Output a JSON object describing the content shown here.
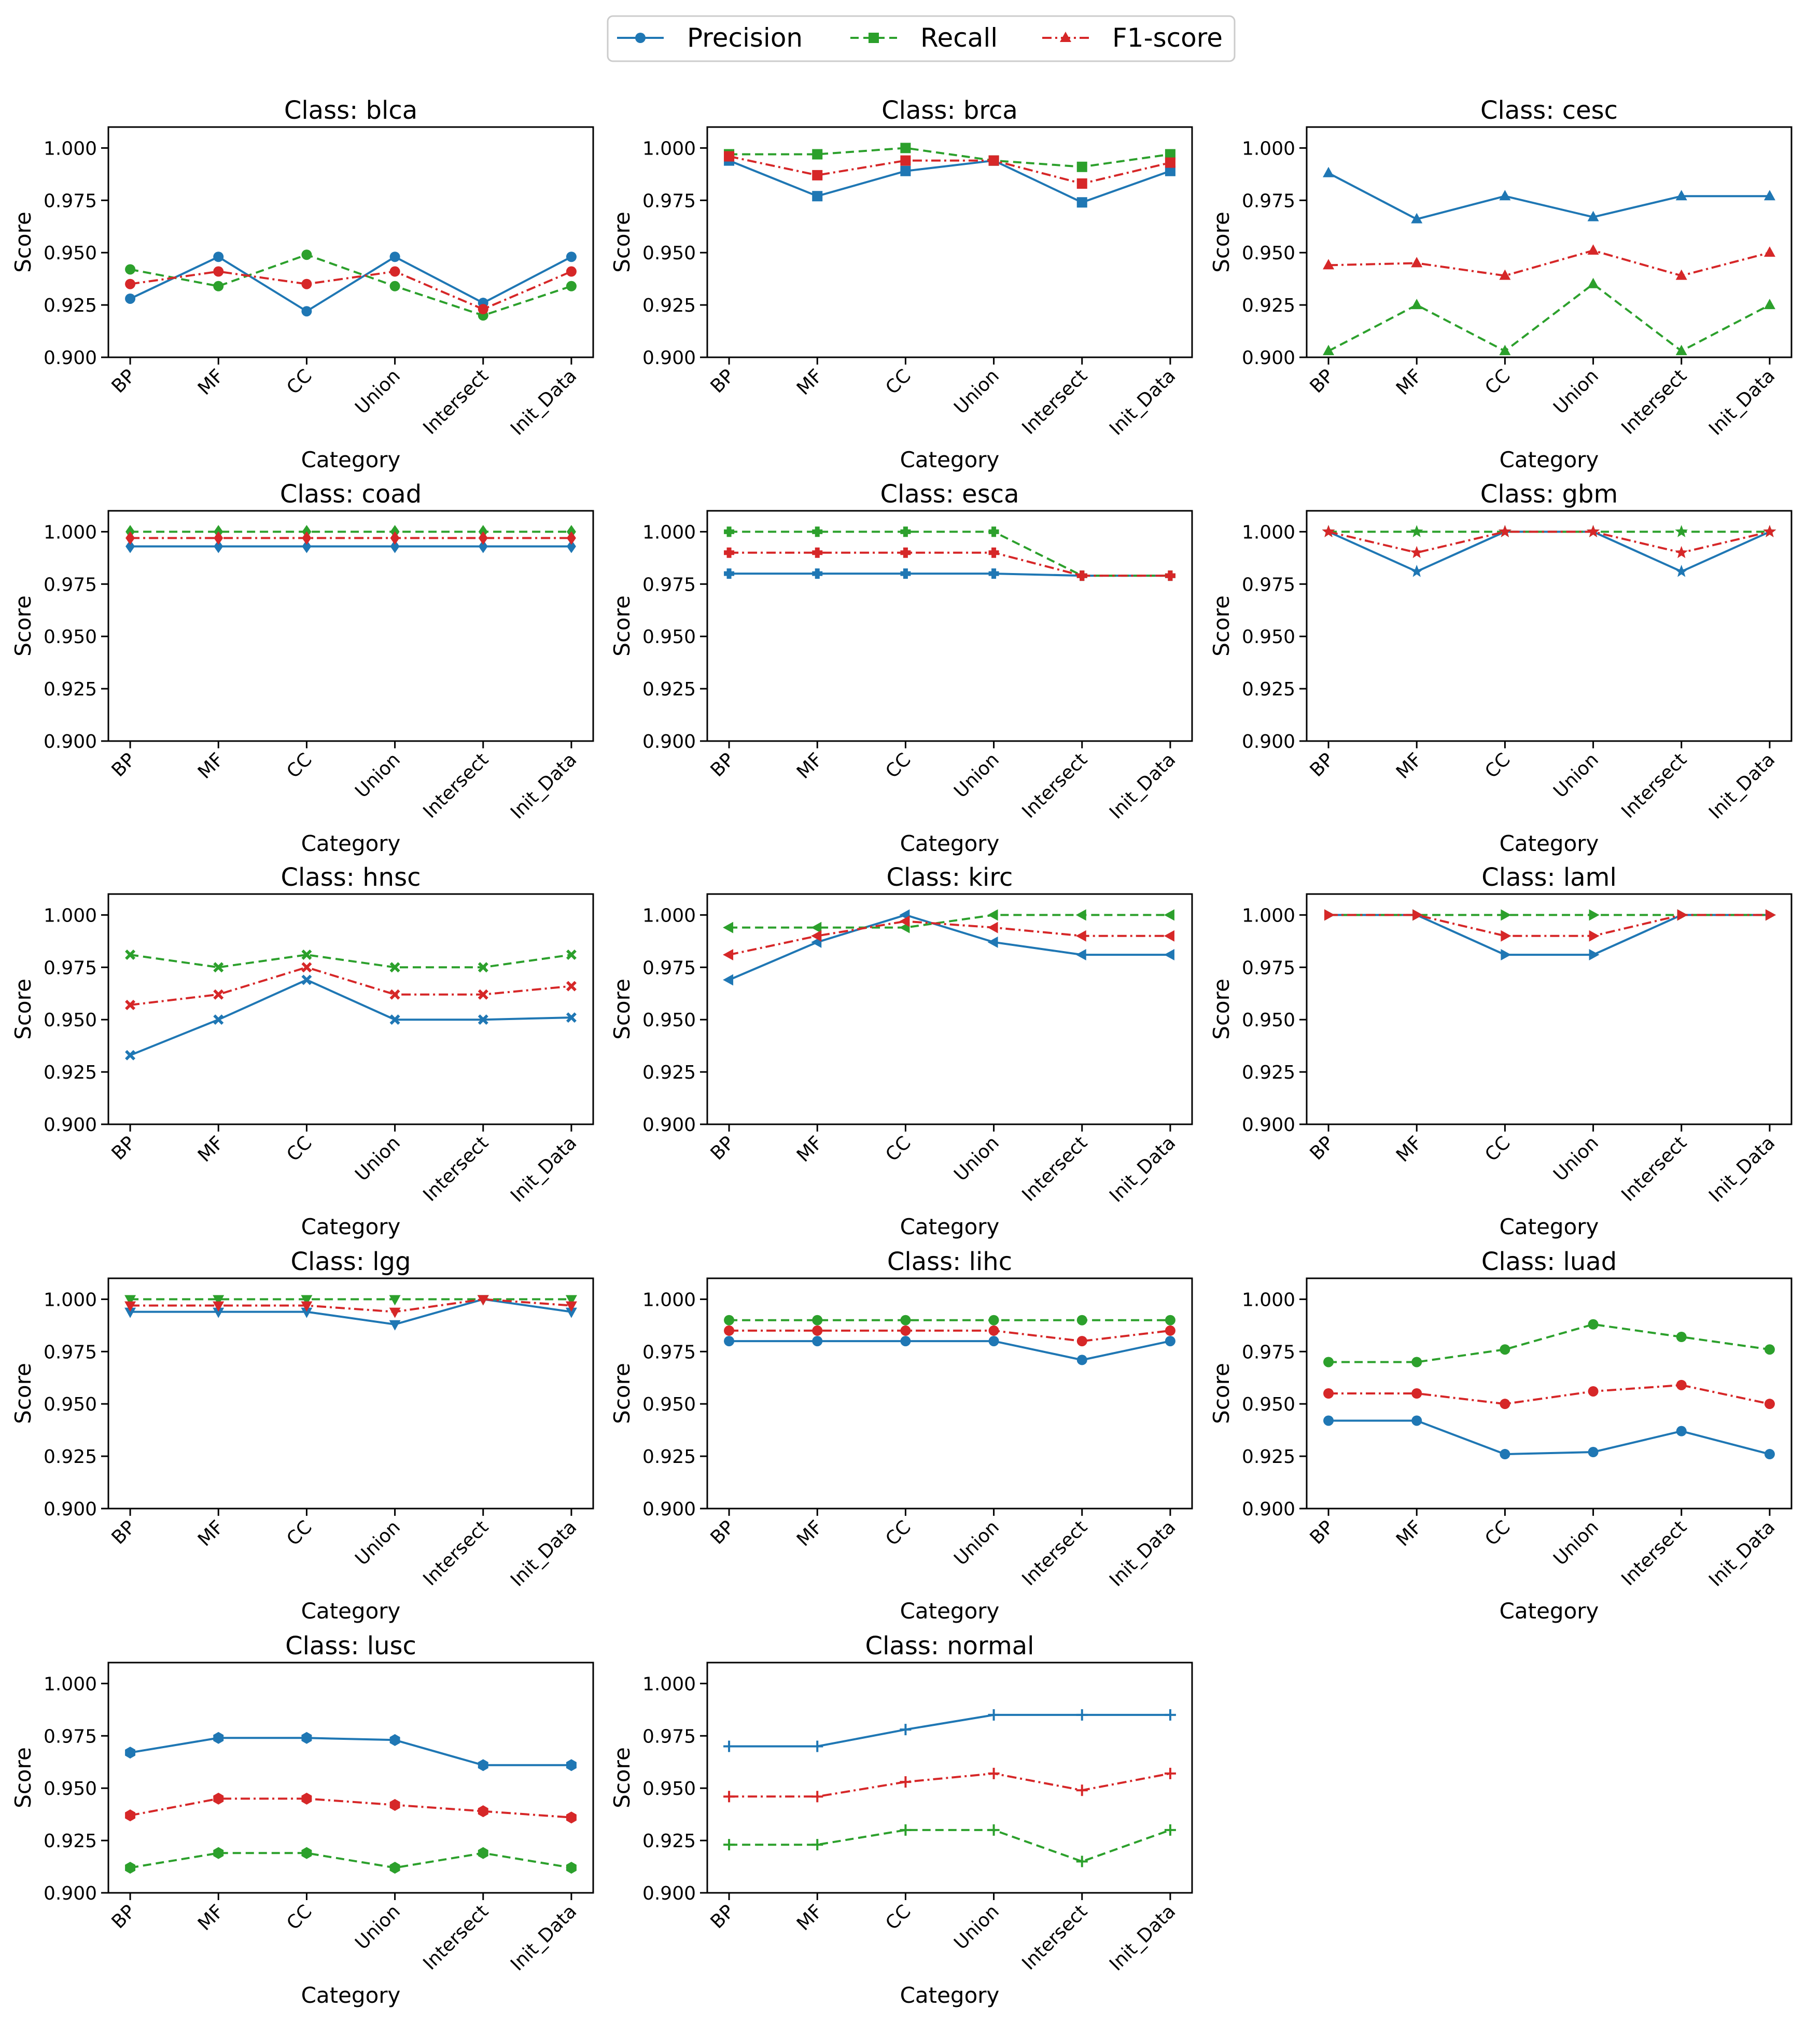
{
  "legend": {
    "placement": "top-center",
    "entries": [
      {
        "label": "Precision",
        "color": "#1f77b4",
        "dash": "solid"
      },
      {
        "label": "Recall",
        "color": "#2ca02c",
        "dash": "dashed"
      },
      {
        "label": "F1-score",
        "color": "#d62728",
        "dash": "dashdot"
      }
    ]
  },
  "chart_data": [
    {
      "type": "line",
      "title": "Class: blca",
      "marker": "circle",
      "xlabel": "Category",
      "ylabel": "Score",
      "categories": [
        "BP",
        "MF",
        "CC",
        "Union",
        "Intersect",
        "Init_Data"
      ],
      "ylim": [
        0.9,
        1.01
      ],
      "yticks": [
        "0.900",
        "0.925",
        "0.950",
        "0.975",
        "1.000"
      ],
      "series": [
        {
          "name": "Precision",
          "values": [
            0.928,
            0.948,
            0.922,
            0.948,
            0.926,
            0.948
          ]
        },
        {
          "name": "Recall",
          "values": [
            0.942,
            0.934,
            0.949,
            0.934,
            0.92,
            0.934
          ]
        },
        {
          "name": "F1-score",
          "values": [
            0.935,
            0.941,
            0.935,
            0.941,
            0.923,
            0.941
          ]
        }
      ]
    },
    {
      "type": "line",
      "title": "Class: brca",
      "marker": "square",
      "xlabel": "Category",
      "ylabel": "Score",
      "categories": [
        "BP",
        "MF",
        "CC",
        "Union",
        "Intersect",
        "Init_Data"
      ],
      "ylim": [
        0.9,
        1.01
      ],
      "yticks": [
        "0.900",
        "0.925",
        "0.950",
        "0.975",
        "1.000"
      ],
      "series": [
        {
          "name": "Precision",
          "values": [
            0.994,
            0.977,
            0.989,
            0.994,
            0.974,
            0.989
          ]
        },
        {
          "name": "Recall",
          "values": [
            0.997,
            0.997,
            1.0,
            0.994,
            0.991,
            0.997
          ]
        },
        {
          "name": "F1-score",
          "values": [
            0.996,
            0.987,
            0.994,
            0.994,
            0.983,
            0.993
          ]
        }
      ]
    },
    {
      "type": "line",
      "title": "Class: cesc",
      "marker": "triangle-up",
      "xlabel": "Category",
      "ylabel": "Score",
      "categories": [
        "BP",
        "MF",
        "CC",
        "Union",
        "Intersect",
        "Init_Data"
      ],
      "ylim": [
        0.9,
        1.01
      ],
      "yticks": [
        "0.900",
        "0.925",
        "0.950",
        "0.975",
        "1.000"
      ],
      "series": [
        {
          "name": "Precision",
          "values": [
            0.988,
            0.966,
            0.977,
            0.967,
            0.977,
            0.977
          ]
        },
        {
          "name": "Recall",
          "values": [
            0.903,
            0.925,
            0.903,
            0.935,
            0.903,
            0.925
          ]
        },
        {
          "name": "F1-score",
          "values": [
            0.944,
            0.945,
            0.939,
            0.951,
            0.939,
            0.95
          ]
        }
      ]
    },
    {
      "type": "line",
      "title": "Class: coad",
      "marker": "diamond",
      "xlabel": "Category",
      "ylabel": "Score",
      "categories": [
        "BP",
        "MF",
        "CC",
        "Union",
        "Intersect",
        "Init_Data"
      ],
      "ylim": [
        0.9,
        1.01
      ],
      "yticks": [
        "0.900",
        "0.925",
        "0.950",
        "0.975",
        "1.000"
      ],
      "series": [
        {
          "name": "Precision",
          "values": [
            0.993,
            0.993,
            0.993,
            0.993,
            0.993,
            0.993
          ]
        },
        {
          "name": "Recall",
          "values": [
            1.0,
            1.0,
            1.0,
            1.0,
            1.0,
            1.0
          ]
        },
        {
          "name": "F1-score",
          "values": [
            0.997,
            0.997,
            0.997,
            0.997,
            0.997,
            0.997
          ]
        }
      ]
    },
    {
      "type": "line",
      "title": "Class: esca",
      "marker": "plus",
      "xlabel": "Category",
      "ylabel": "Score",
      "categories": [
        "BP",
        "MF",
        "CC",
        "Union",
        "Intersect",
        "Init_Data"
      ],
      "ylim": [
        0.9,
        1.01
      ],
      "yticks": [
        "0.900",
        "0.925",
        "0.950",
        "0.975",
        "1.000"
      ],
      "series": [
        {
          "name": "Precision",
          "values": [
            0.98,
            0.98,
            0.98,
            0.98,
            0.979,
            0.979
          ]
        },
        {
          "name": "Recall",
          "values": [
            1.0,
            1.0,
            1.0,
            1.0,
            0.979,
            0.979
          ]
        },
        {
          "name": "F1-score",
          "values": [
            0.99,
            0.99,
            0.99,
            0.99,
            0.979,
            0.979
          ]
        }
      ]
    },
    {
      "type": "line",
      "title": "Class: gbm",
      "marker": "star",
      "xlabel": "Category",
      "ylabel": "Score",
      "categories": [
        "BP",
        "MF",
        "CC",
        "Union",
        "Intersect",
        "Init_Data"
      ],
      "ylim": [
        0.9,
        1.01
      ],
      "yticks": [
        "0.900",
        "0.925",
        "0.950",
        "0.975",
        "1.000"
      ],
      "series": [
        {
          "name": "Precision",
          "values": [
            1.0,
            0.981,
            1.0,
            1.0,
            0.981,
            1.0
          ]
        },
        {
          "name": "Recall",
          "values": [
            1.0,
            1.0,
            1.0,
            1.0,
            1.0,
            1.0
          ]
        },
        {
          "name": "F1-score",
          "values": [
            1.0,
            0.99,
            1.0,
            1.0,
            0.99,
            1.0
          ]
        }
      ]
    },
    {
      "type": "line",
      "title": "Class: hnsc",
      "marker": "x",
      "xlabel": "Category",
      "ylabel": "Score",
      "categories": [
        "BP",
        "MF",
        "CC",
        "Union",
        "Intersect",
        "Init_Data"
      ],
      "ylim": [
        0.9,
        1.01
      ],
      "yticks": [
        "0.900",
        "0.925",
        "0.950",
        "0.975",
        "1.000"
      ],
      "series": [
        {
          "name": "Precision",
          "values": [
            0.933,
            0.95,
            0.969,
            0.95,
            0.95,
            0.951
          ]
        },
        {
          "name": "Recall",
          "values": [
            0.981,
            0.975,
            0.981,
            0.975,
            0.975,
            0.981
          ]
        },
        {
          "name": "F1-score",
          "values": [
            0.957,
            0.962,
            0.975,
            0.962,
            0.962,
            0.966
          ]
        }
      ]
    },
    {
      "type": "line",
      "title": "Class: kirc",
      "marker": "triangle-left",
      "xlabel": "Category",
      "ylabel": "Score",
      "categories": [
        "BP",
        "MF",
        "CC",
        "Union",
        "Intersect",
        "Init_Data"
      ],
      "ylim": [
        0.9,
        1.01
      ],
      "yticks": [
        "0.900",
        "0.925",
        "0.950",
        "0.975",
        "1.000"
      ],
      "series": [
        {
          "name": "Precision",
          "values": [
            0.969,
            0.987,
            1.0,
            0.987,
            0.981,
            0.981
          ]
        },
        {
          "name": "Recall",
          "values": [
            0.994,
            0.994,
            0.994,
            1.0,
            1.0,
            1.0
          ]
        },
        {
          "name": "F1-score",
          "values": [
            0.981,
            0.99,
            0.997,
            0.994,
            0.99,
            0.99
          ]
        }
      ]
    },
    {
      "type": "line",
      "title": "Class: laml",
      "marker": "triangle-right",
      "xlabel": "Category",
      "ylabel": "Score",
      "categories": [
        "BP",
        "MF",
        "CC",
        "Union",
        "Intersect",
        "Init_Data"
      ],
      "ylim": [
        0.9,
        1.01
      ],
      "yticks": [
        "0.900",
        "0.925",
        "0.950",
        "0.975",
        "1.000"
      ],
      "series": [
        {
          "name": "Precision",
          "values": [
            1.0,
            1.0,
            0.981,
            0.981,
            1.0,
            1.0
          ]
        },
        {
          "name": "Recall",
          "values": [
            1.0,
            1.0,
            1.0,
            1.0,
            1.0,
            1.0
          ]
        },
        {
          "name": "F1-score",
          "values": [
            1.0,
            1.0,
            0.99,
            0.99,
            1.0,
            1.0
          ]
        }
      ]
    },
    {
      "type": "line",
      "title": "Class: lgg",
      "marker": "triangle-down",
      "xlabel": "Category",
      "ylabel": "Score",
      "categories": [
        "BP",
        "MF",
        "CC",
        "Union",
        "Intersect",
        "Init_Data"
      ],
      "ylim": [
        0.9,
        1.01
      ],
      "yticks": [
        "0.900",
        "0.925",
        "0.950",
        "0.975",
        "1.000"
      ],
      "series": [
        {
          "name": "Precision",
          "values": [
            0.994,
            0.994,
            0.994,
            0.988,
            1.0,
            0.994
          ]
        },
        {
          "name": "Recall",
          "values": [
            1.0,
            1.0,
            1.0,
            1.0,
            1.0,
            1.0
          ]
        },
        {
          "name": "F1-score",
          "values": [
            0.997,
            0.997,
            0.997,
            0.994,
            1.0,
            0.997
          ]
        }
      ]
    },
    {
      "type": "line",
      "title": "Class: lihc",
      "marker": "circle",
      "xlabel": "Category",
      "ylabel": "Score",
      "categories": [
        "BP",
        "MF",
        "CC",
        "Union",
        "Intersect",
        "Init_Data"
      ],
      "ylim": [
        0.9,
        1.01
      ],
      "yticks": [
        "0.900",
        "0.925",
        "0.950",
        "0.975",
        "1.000"
      ],
      "series": [
        {
          "name": "Precision",
          "values": [
            0.98,
            0.98,
            0.98,
            0.98,
            0.971,
            0.98
          ]
        },
        {
          "name": "Recall",
          "values": [
            0.99,
            0.99,
            0.99,
            0.99,
            0.99,
            0.99
          ]
        },
        {
          "name": "F1-score",
          "values": [
            0.985,
            0.985,
            0.985,
            0.985,
            0.98,
            0.985
          ]
        }
      ]
    },
    {
      "type": "line",
      "title": "Class: luad",
      "marker": "circle",
      "xlabel": "Category",
      "ylabel": "Score",
      "categories": [
        "BP",
        "MF",
        "CC",
        "Union",
        "Intersect",
        "Init_Data"
      ],
      "ylim": [
        0.9,
        1.01
      ],
      "yticks": [
        "0.900",
        "0.925",
        "0.950",
        "0.975",
        "1.000"
      ],
      "series": [
        {
          "name": "Precision",
          "values": [
            0.942,
            0.942,
            0.926,
            0.927,
            0.937,
            0.926
          ]
        },
        {
          "name": "Recall",
          "values": [
            0.97,
            0.97,
            0.976,
            0.988,
            0.982,
            0.976
          ]
        },
        {
          "name": "F1-score",
          "values": [
            0.955,
            0.955,
            0.95,
            0.956,
            0.959,
            0.95
          ]
        }
      ]
    },
    {
      "type": "line",
      "title": "Class: lusc",
      "marker": "hexagon",
      "xlabel": "Category",
      "ylabel": "Score",
      "categories": [
        "BP",
        "MF",
        "CC",
        "Union",
        "Intersect",
        "Init_Data"
      ],
      "ylim": [
        0.9,
        1.01
      ],
      "yticks": [
        "0.900",
        "0.925",
        "0.950",
        "0.975",
        "1.000"
      ],
      "series": [
        {
          "name": "Precision",
          "values": [
            0.967,
            0.974,
            0.974,
            0.973,
            0.961,
            0.961
          ]
        },
        {
          "name": "Recall",
          "values": [
            0.912,
            0.919,
            0.919,
            0.912,
            0.919,
            0.912
          ]
        },
        {
          "name": "F1-score",
          "values": [
            0.937,
            0.945,
            0.945,
            0.942,
            0.939,
            0.936
          ]
        }
      ]
    },
    {
      "type": "line",
      "title": "Class: normal",
      "marker": "thin-plus",
      "xlabel": "Category",
      "ylabel": "Score",
      "categories": [
        "BP",
        "MF",
        "CC",
        "Union",
        "Intersect",
        "Init_Data"
      ],
      "ylim": [
        0.9,
        1.01
      ],
      "yticks": [
        "0.900",
        "0.925",
        "0.950",
        "0.975",
        "1.000"
      ],
      "series": [
        {
          "name": "Precision",
          "values": [
            0.97,
            0.97,
            0.978,
            0.985,
            0.985,
            0.985
          ]
        },
        {
          "name": "Recall",
          "values": [
            0.923,
            0.923,
            0.93,
            0.93,
            0.915,
            0.93
          ]
        },
        {
          "name": "F1-score",
          "values": [
            0.946,
            0.946,
            0.953,
            0.957,
            0.949,
            0.957
          ]
        }
      ]
    }
  ]
}
